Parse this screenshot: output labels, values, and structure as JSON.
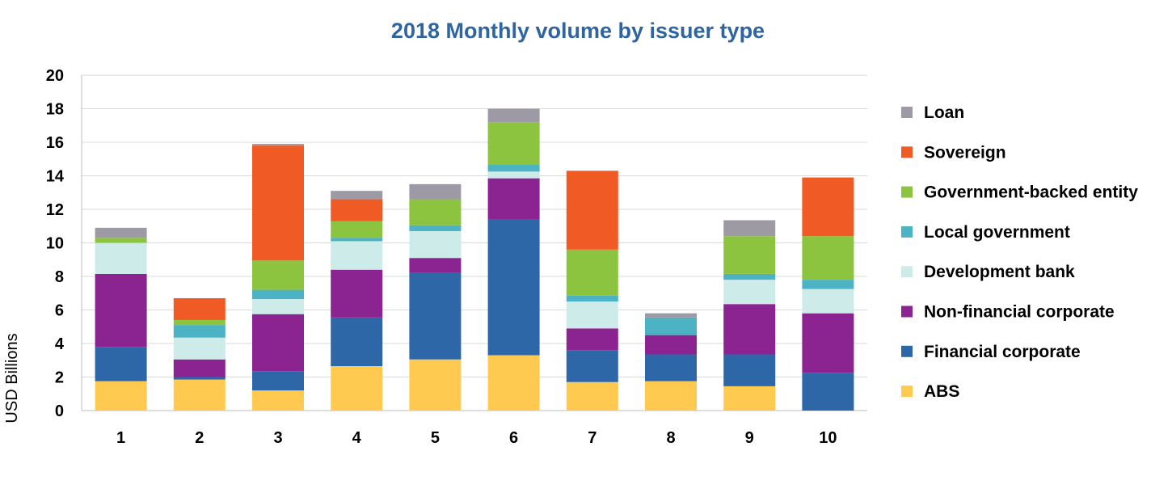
{
  "chart_data": {
    "type": "bar",
    "stacked": true,
    "title": "2018 Monthly volume by issuer type",
    "title_color": "#2E64A0",
    "xlabel": "",
    "ylabel": "USD Billions",
    "ylim": [
      0,
      20
    ],
    "yticks": [
      0,
      2,
      4,
      6,
      8,
      10,
      12,
      14,
      16,
      18,
      20
    ],
    "grid": true,
    "legend_position": "right",
    "categories": [
      "1",
      "2",
      "3",
      "4",
      "5",
      "6",
      "7",
      "8",
      "9",
      "10"
    ],
    "series": [
      {
        "name": "ABS",
        "color": "#FFCA4F",
        "values": [
          1.75,
          1.85,
          1.2,
          2.65,
          3.05,
          3.3,
          1.7,
          1.75,
          1.45,
          0
        ]
      },
      {
        "name": "Financial corporate",
        "color": "#2E67A8",
        "values": [
          2.05,
          0.15,
          1.15,
          2.9,
          5.15,
          8.1,
          1.9,
          1.6,
          1.9,
          2.25
        ]
      },
      {
        "name": "Non-financial corporate",
        "color": "#8B2391",
        "values": [
          4.35,
          1.05,
          3.4,
          2.85,
          0.9,
          2.45,
          1.3,
          1.15,
          3.0,
          3.55
        ]
      },
      {
        "name": "Development bank",
        "color": "#CDEBE9",
        "values": [
          1.85,
          1.3,
          0.9,
          1.7,
          1.6,
          0.4,
          1.6,
          0,
          1.45,
          1.45
        ]
      },
      {
        "name": "Local government",
        "color": "#4BB3C4",
        "values": [
          0,
          0.75,
          0.55,
          0.2,
          0.35,
          0.4,
          0.35,
          1.05,
          0.35,
          0.55
        ]
      },
      {
        "name": "Government-backed entity",
        "color": "#8CC43F",
        "values": [
          0.3,
          0.3,
          1.75,
          1.0,
          1.55,
          2.55,
          2.75,
          0,
          2.25,
          2.6
        ]
      },
      {
        "name": "Sovereign",
        "color": "#F05A24",
        "values": [
          0,
          1.3,
          6.85,
          1.3,
          0,
          0,
          4.7,
          0,
          0,
          3.5
        ]
      },
      {
        "name": "Loan",
        "color": "#9D9AA6",
        "values": [
          0.6,
          0,
          0.1,
          0.5,
          0.9,
          0.8,
          0,
          0.25,
          0.95,
          0
        ]
      }
    ]
  }
}
